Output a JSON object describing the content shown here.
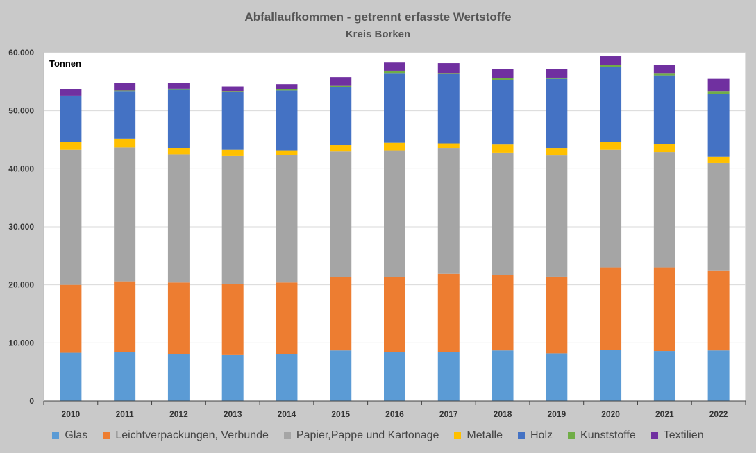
{
  "chart_data": {
    "type": "bar",
    "stacked": true,
    "title": "Abfallaufkommen  - getrennt erfasste Wertstoffe",
    "subtitle": "Kreis Borken",
    "ylabel": "Tonnen",
    "xlabel": "",
    "ylim": [
      0,
      60000
    ],
    "yticks": [
      0,
      10000,
      20000,
      30000,
      40000,
      50000,
      60000
    ],
    "ytick_labels": [
      "0",
      "10.000",
      "20.000",
      "30.000",
      "40.000",
      "50.000",
      "60.000"
    ],
    "grid": true,
    "legend_position": "bottom",
    "categories": [
      "2010",
      "2011",
      "2012",
      "2013",
      "2014",
      "2015",
      "2016",
      "2017",
      "2018",
      "2019",
      "2020",
      "2021",
      "2022"
    ],
    "series": [
      {
        "name": "Glas",
        "color": "#5b9bd5",
        "values": [
          8300,
          8400,
          8100,
          7900,
          8100,
          8700,
          8400,
          8400,
          8700,
          8200,
          8800,
          8600,
          8700
        ]
      },
      {
        "name": "Leichtverpackungen, Verbunde",
        "color": "#ed7d31",
        "values": [
          11700,
          12200,
          12300,
          12200,
          12300,
          12600,
          12900,
          13500,
          13000,
          13200,
          14200,
          14400,
          13800
        ]
      },
      {
        "name": "Papier,Pappe und Kartonage",
        "color": "#a5a5a5",
        "values": [
          23300,
          23100,
          22100,
          22100,
          22000,
          21700,
          21900,
          21600,
          21100,
          20900,
          20300,
          19900,
          18500
        ]
      },
      {
        "name": "Metalle",
        "color": "#ffc000",
        "values": [
          1300,
          1500,
          1100,
          1100,
          800,
          1100,
          1300,
          900,
          1400,
          1200,
          1400,
          1400,
          1100
        ]
      },
      {
        "name": "Holz",
        "color": "#4472c4",
        "values": [
          7900,
          8200,
          10000,
          9900,
          10300,
          10000,
          12000,
          11900,
          11100,
          12000,
          12900,
          11800,
          10800
        ]
      },
      {
        "name": "Kunststoffe",
        "color": "#70ad47",
        "values": [
          100,
          100,
          200,
          200,
          200,
          200,
          400,
          200,
          300,
          200,
          300,
          400,
          500
        ]
      },
      {
        "name": "Textilien",
        "color": "#7030a0",
        "values": [
          1100,
          1300,
          1000,
          800,
          900,
          1500,
          1400,
          1700,
          1600,
          1500,
          1500,
          1400,
          2100
        ]
      }
    ]
  }
}
